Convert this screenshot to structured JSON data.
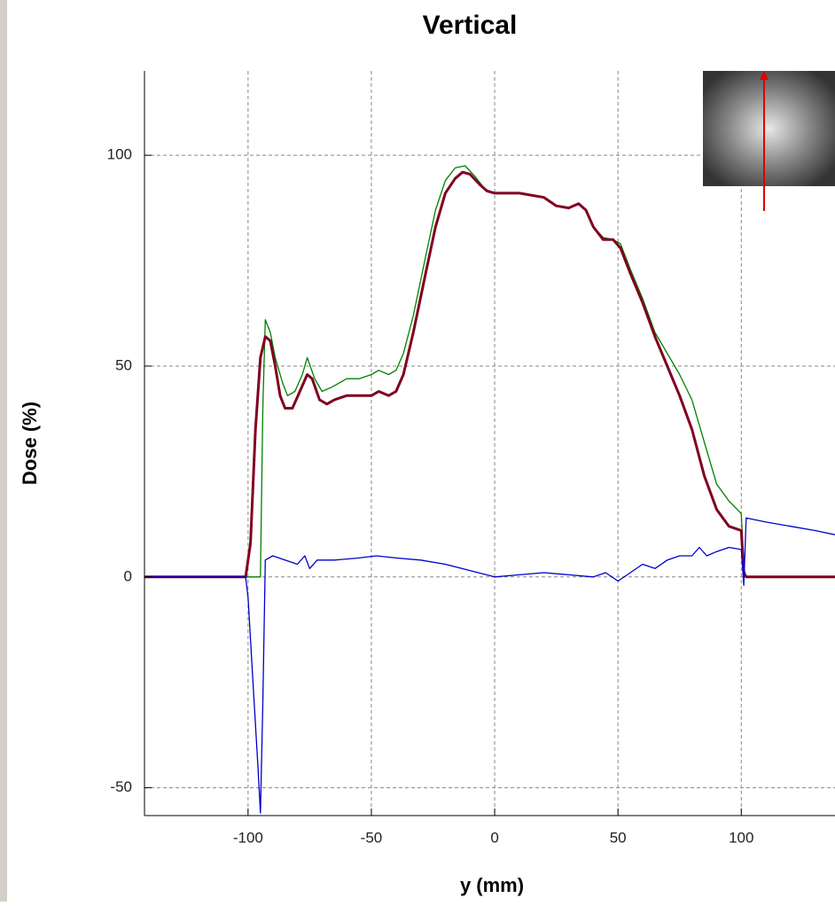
{
  "chart_data": {
    "type": "line",
    "title": "Vertical",
    "x_label": "y (mm)",
    "y_label": "Dose (%)",
    "xlim": [
      -142,
      138
    ],
    "ylim": [
      -56.6,
      120
    ],
    "xticks": [
      -100,
      -50,
      0,
      50,
      100
    ],
    "yticks": [
      -50,
      0,
      50,
      100
    ],
    "grid": true,
    "series": [
      {
        "color": "#008000",
        "x": [
          -142,
          -95,
          -94,
          -93,
          -91,
          -89,
          -86,
          -84,
          -81,
          -78,
          -76,
          -73,
          -70,
          -66,
          -60,
          -55,
          -50,
          -47,
          -43,
          -40,
          -37,
          -33,
          -28,
          -24,
          -20,
          -16,
          -12,
          -8,
          -4,
          0,
          10,
          20,
          25,
          30,
          34,
          37,
          40,
          44,
          48,
          51,
          55,
          60,
          65,
          70,
          75,
          80,
          85,
          90,
          95,
          100,
          101,
          102,
          138
        ],
        "values": [
          0,
          0,
          40,
          61,
          58,
          52,
          46,
          43,
          44,
          48,
          52,
          47,
          44,
          45,
          47,
          47,
          48,
          49,
          48,
          49,
          53,
          62,
          76,
          87,
          94,
          97,
          97.5,
          95,
          92,
          91,
          91,
          90,
          88,
          87.5,
          88.5,
          87,
          83,
          80.5,
          80,
          79,
          73,
          66,
          58,
          53,
          48,
          42,
          32,
          22,
          18,
          15,
          2,
          0,
          0
        ]
      },
      {
        "color": "#800020",
        "x": [
          -142,
          -101,
          -99,
          -97,
          -95,
          -93,
          -91,
          -89,
          -87,
          -85,
          -82,
          -79,
          -76,
          -74,
          -71,
          -68,
          -65,
          -60,
          -55,
          -50,
          -47,
          -43,
          -40,
          -37,
          -33,
          -28,
          -24,
          -20,
          -16,
          -13,
          -10,
          -6,
          -3,
          0,
          10,
          20,
          25,
          30,
          34,
          37,
          40,
          44,
          48,
          51,
          55,
          60,
          65,
          70,
          75,
          80,
          85,
          90,
          95,
          100,
          101,
          102,
          138
        ],
        "values": [
          0,
          0,
          8,
          35,
          52,
          57,
          56,
          50,
          43,
          40,
          40,
          44,
          48,
          47,
          42,
          41,
          42,
          43,
          43,
          43,
          44,
          43,
          44,
          48,
          58,
          72,
          83,
          91,
          94.5,
          96,
          95.5,
          93,
          91.5,
          91,
          91,
          90,
          88,
          87.5,
          88.5,
          87,
          83,
          80,
          80,
          78,
          72,
          65,
          57,
          50,
          43,
          35,
          24,
          16,
          12,
          11,
          1,
          0,
          0
        ]
      },
      {
        "color": "#0000cc",
        "x": [
          -142,
          -101,
          -100,
          -98,
          -96,
          -95,
          -94,
          -93,
          -90,
          -85,
          -80,
          -77,
          -75,
          -72,
          -65,
          -55,
          -48,
          -40,
          -30,
          -20,
          -10,
          0,
          10,
          20,
          30,
          40,
          45,
          50,
          55,
          60,
          65,
          70,
          75,
          80,
          83,
          86,
          90,
          95,
          100,
          101,
          102,
          110,
          120,
          130,
          138
        ],
        "values": [
          0,
          0,
          -5,
          -25,
          -45,
          -56,
          -30,
          4,
          5,
          4,
          3,
          5,
          2,
          4,
          4,
          4.5,
          5,
          4.5,
          4,
          3,
          1.5,
          0,
          0.5,
          1,
          0.5,
          0,
          1,
          -1,
          1,
          3,
          2,
          4,
          5,
          5,
          7,
          5,
          6,
          7,
          6.5,
          -2,
          14,
          13,
          12,
          11,
          10
        ]
      }
    ]
  }
}
